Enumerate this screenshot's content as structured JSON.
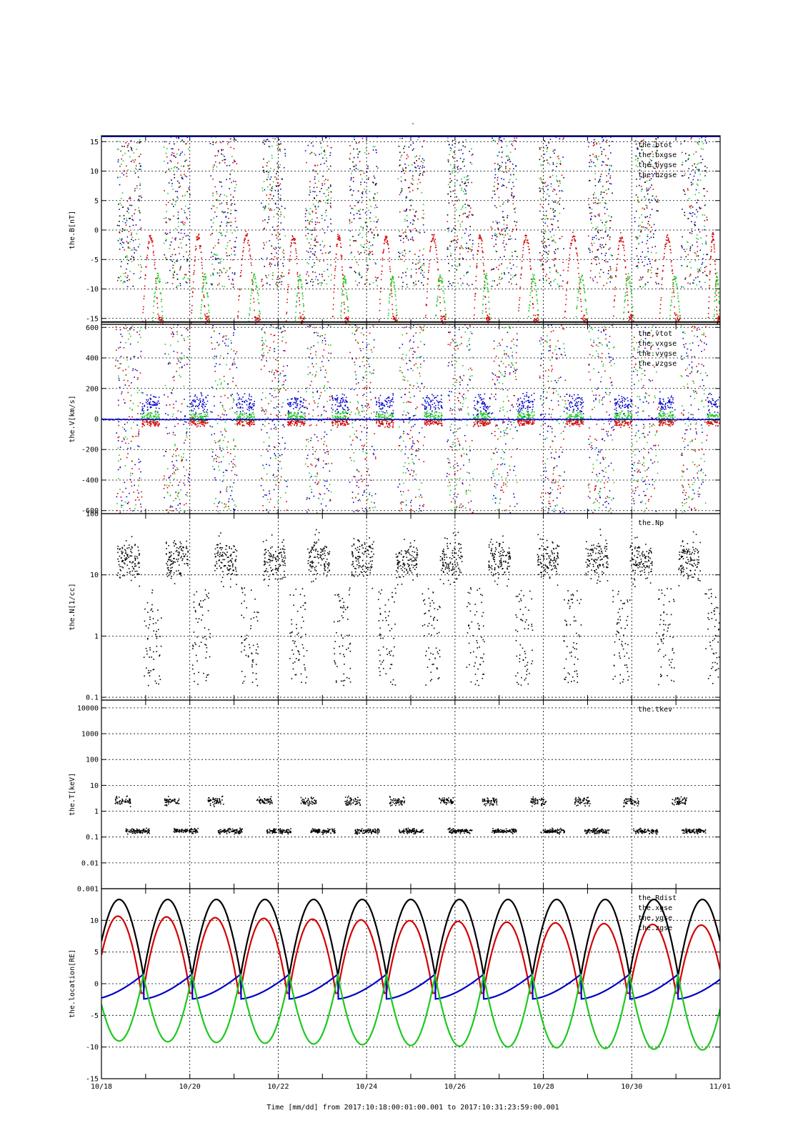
{
  "title": "-",
  "colors": {
    "black": "#000000",
    "red": "#d40000",
    "green": "#1ec81e",
    "blue": "#0000c8"
  },
  "footer": {
    "time_label": "Time [mm/dd]  from 2017:10:18:00:01:00.001  to  2017:10:31:23:59:00.001"
  },
  "chart_data": [
    {
      "type": "scatter",
      "ylabel": "the.B[nT]",
      "ylim": [
        -16,
        16
      ],
      "yticks": [
        -15,
        -10,
        -5,
        0,
        5,
        10,
        15
      ],
      "xlim": [
        0,
        14
      ],
      "legend_position": "top-right",
      "series": [
        {
          "name": "the.btot",
          "color": "black"
        },
        {
          "name": "the.bxgse",
          "color": "red"
        },
        {
          "name": "the.bygse",
          "color": "green"
        },
        {
          "name": "the.bzgse",
          "color": "blue"
        }
      ],
      "segments": [
        [
          0.35,
          0.9
        ],
        [
          1.4,
          2.0
        ],
        [
          2.45,
          3.05
        ],
        [
          3.6,
          4.15
        ],
        [
          4.6,
          5.2
        ],
        [
          5.6,
          6.25
        ],
        [
          6.7,
          7.3
        ],
        [
          7.8,
          8.4
        ],
        [
          8.8,
          9.4
        ],
        [
          9.9,
          10.45
        ],
        [
          11.0,
          11.55
        ],
        [
          12.05,
          12.6
        ],
        [
          13.1,
          13.7
        ]
      ]
    },
    {
      "type": "scatter",
      "ylabel": "the.V[km/s]",
      "ylim": [
        -620,
        620
      ],
      "yticks": [
        -600,
        -400,
        -200,
        0,
        200,
        400,
        600
      ],
      "xlim": [
        0,
        14
      ],
      "legend_position": "top-right",
      "series": [
        {
          "name": "the.vtot",
          "color": "black"
        },
        {
          "name": "the.vxgse",
          "color": "red"
        },
        {
          "name": "the.vygse",
          "color": "green"
        },
        {
          "name": "the.vzgse",
          "color": "blue"
        }
      ]
    },
    {
      "type": "scatter",
      "ylabel": "the.N[1/cc]",
      "ylim": [
        0.09,
        100
      ],
      "log": true,
      "yticks": [
        0.1,
        1,
        10,
        100
      ],
      "ytick_labels": [
        "0.1",
        "1",
        "10",
        "100"
      ],
      "xlim": [
        0,
        14
      ],
      "legend_position": "top-right",
      "series": [
        {
          "name": "the.Np",
          "color": "black"
        }
      ]
    },
    {
      "type": "scatter",
      "ylabel": "the.T[keV]",
      "ylim": [
        0.001,
        20000
      ],
      "log": true,
      "yticks": [
        0.001,
        0.01,
        0.1,
        1,
        10,
        100,
        1000,
        10000
      ],
      "ytick_labels": [
        "0.001",
        "0.01",
        "0.1",
        "1",
        "10",
        "100",
        "1000",
        "10000"
      ],
      "xlim": [
        0,
        14
      ],
      "legend_position": "top-right",
      "series": [
        {
          "name": "the.tkev",
          "color": "black"
        }
      ]
    },
    {
      "type": "line",
      "ylabel": "the.location[RE]",
      "ylim": [
        -15,
        15
      ],
      "yticks": [
        -15,
        -10,
        -5,
        0,
        5,
        10
      ],
      "xlim": [
        0,
        14
      ],
      "legend_position": "top-right",
      "orbit_period_days": 1.1,
      "series": [
        {
          "name": "the.Rdist",
          "color": "black",
          "peak": 13.3,
          "min": 1.2
        },
        {
          "name": "the.xgse",
          "color": "red",
          "peak": 10.7,
          "peak_end": 9.2,
          "min": -1.5
        },
        {
          "name": "the.ygse",
          "color": "blue",
          "peak": 1.5,
          "min": -2.4
        },
        {
          "name": "the.zgse",
          "color": "green",
          "peak": 1.5,
          "min": -9.0,
          "min_end": -10.5
        }
      ]
    }
  ],
  "x_axis": {
    "ticks": [
      0,
      2,
      4,
      6,
      8,
      10,
      12,
      14
    ],
    "tick_labels": [
      "10/18",
      "10/20",
      "10/22",
      "10/24",
      "10/26",
      "10/28",
      "10/30",
      "11/01"
    ]
  }
}
